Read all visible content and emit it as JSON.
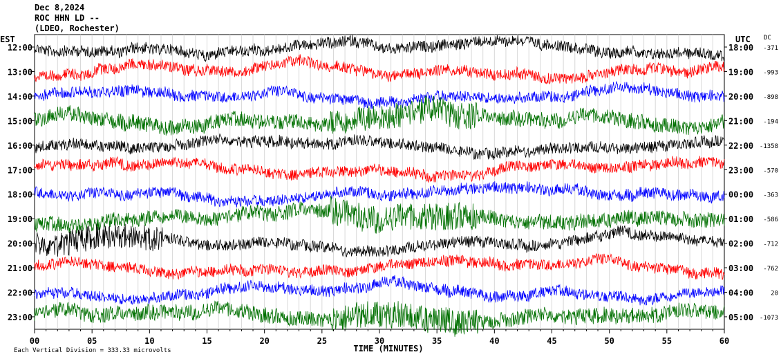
{
  "header": {
    "date": "Dec 8,2024",
    "station": "ROC HHN LD --",
    "network": "(LDEO, Rochester)"
  },
  "chart_data": {
    "type": "line",
    "title": "ROC HHN LD --",
    "xlabel": "TIME (MINUTES)",
    "x_ticks": [
      "00",
      "05",
      "10",
      "15",
      "20",
      "25",
      "30",
      "35",
      "40",
      "45",
      "50",
      "55",
      "60"
    ],
    "xlim": [
      0,
      60
    ],
    "left_axis_title": "EST",
    "right_axis_title": "UTC",
    "dc_title": "DC",
    "footer": "Each Vertical Division = 333.33 microvolts",
    "colors": [
      "#000000",
      "#ff0000",
      "#0000ff",
      "#007000"
    ],
    "rows": [
      {
        "est": "12:00",
        "utc": "18:00",
        "dc": "-371"
      },
      {
        "est": "13:00",
        "utc": "19:00",
        "dc": "-993"
      },
      {
        "est": "14:00",
        "utc": "20:00",
        "dc": "-898"
      },
      {
        "est": "15:00",
        "utc": "21:00",
        "dc": "-194"
      },
      {
        "est": "16:00",
        "utc": "22:00",
        "dc": "-1358"
      },
      {
        "est": "17:00",
        "utc": "23:00",
        "dc": "-570"
      },
      {
        "est": "18:00",
        "utc": "00:00",
        "dc": "-363"
      },
      {
        "est": "19:00",
        "utc": "01:00",
        "dc": "-586"
      },
      {
        "est": "20:00",
        "utc": "02:00",
        "dc": "-712"
      },
      {
        "est": "21:00",
        "utc": "03:00",
        "dc": "-762"
      },
      {
        "est": "22:00",
        "utc": "04:00",
        "dc": "20"
      },
      {
        "est": "23:00",
        "utc": "05:00",
        "dc": "-1073"
      }
    ]
  }
}
